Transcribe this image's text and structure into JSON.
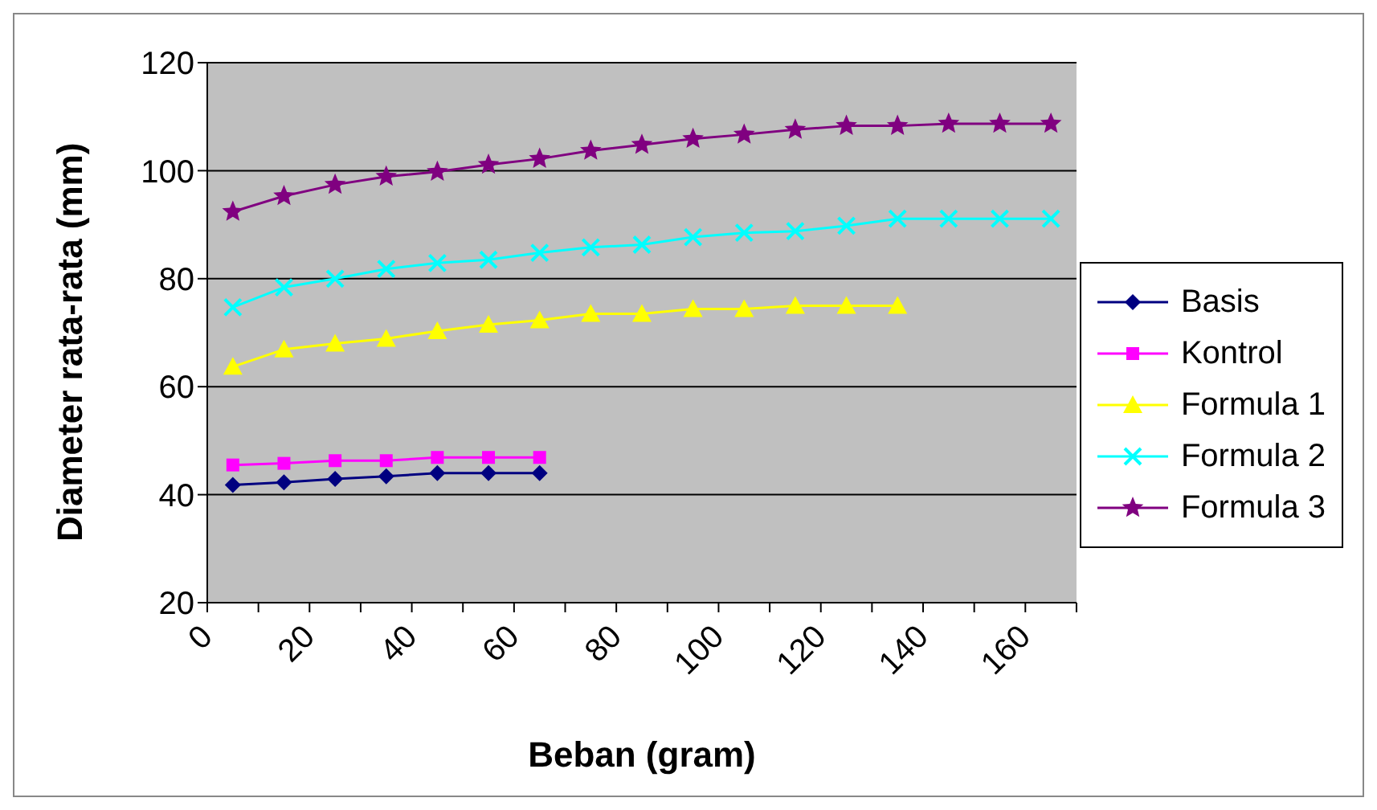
{
  "chart_data": {
    "type": "line",
    "xlabel": "Beban (gram)",
    "ylabel": "Diameter rata-rata (mm)",
    "xlim": [
      0,
      170
    ],
    "xticks": [
      0,
      {
        "value": 10,
        "label": null
      },
      20,
      {
        "value": 30,
        "label": null
      },
      40,
      {
        "value": 50,
        "label": null
      },
      60,
      {
        "value": 70,
        "label": null
      },
      80,
      {
        "value": 90,
        "label": null
      },
      100,
      {
        "value": 110,
        "label": null
      },
      120,
      {
        "value": 130,
        "label": null
      },
      140,
      {
        "value": 150,
        "label": null
      },
      160,
      {
        "value": 170,
        "label": null
      }
    ],
    "ylim": [
      20,
      120
    ],
    "yticks": [
      20,
      40,
      60,
      80,
      100,
      120
    ],
    "grid": "y",
    "legend": "right",
    "series": [
      {
        "name": "Basis",
        "color": "#000080",
        "marker": "diamond",
        "x": [
          5,
          15,
          25,
          35,
          45,
          55,
          65
        ],
        "values": [
          41.8,
          42.3,
          42.9,
          43.4,
          44.0,
          44.0,
          44.0
        ]
      },
      {
        "name": "Kontrol",
        "color": "#ff00ff",
        "marker": "square",
        "x": [
          5,
          15,
          25,
          35,
          45,
          55,
          65
        ],
        "values": [
          45.5,
          45.8,
          46.3,
          46.3,
          46.9,
          46.9,
          46.9
        ]
      },
      {
        "name": "Formula 1",
        "color": "#ffff00",
        "marker": "triangle",
        "x": [
          5,
          15,
          25,
          35,
          45,
          55,
          65,
          75,
          85,
          95,
          105,
          115,
          125,
          135
        ],
        "values": [
          63.7,
          66.9,
          68.0,
          68.9,
          70.3,
          71.5,
          72.3,
          73.5,
          73.5,
          74.4,
          74.4,
          75.0,
          75.0,
          75.0
        ]
      },
      {
        "name": "Formula 2",
        "color": "#00ffff",
        "marker": "cross",
        "x": [
          5,
          15,
          25,
          35,
          45,
          55,
          65,
          75,
          85,
          95,
          105,
          115,
          125,
          135,
          145,
          155,
          165
        ],
        "values": [
          74.7,
          78.4,
          80.0,
          81.8,
          82.9,
          83.5,
          84.8,
          85.8,
          86.3,
          87.7,
          88.5,
          88.8,
          89.8,
          91.1,
          91.1,
          91.1,
          91.1
        ]
      },
      {
        "name": "Formula 3",
        "color": "#800080",
        "marker": "star",
        "x": [
          5,
          15,
          25,
          35,
          45,
          55,
          65,
          75,
          85,
          95,
          105,
          115,
          125,
          135,
          145,
          155,
          165
        ],
        "values": [
          92.4,
          95.3,
          97.4,
          98.9,
          99.8,
          101.1,
          102.2,
          103.7,
          104.8,
          105.9,
          106.7,
          107.6,
          108.3,
          108.3,
          108.7,
          108.7,
          108.7
        ]
      }
    ]
  }
}
